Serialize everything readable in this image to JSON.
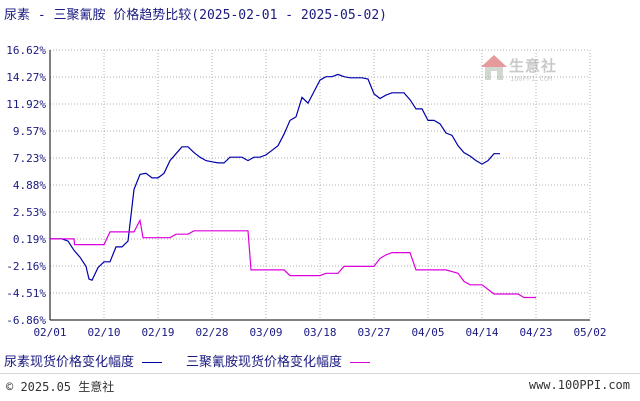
{
  "header": {
    "title": "尿素 - 三聚氰胺 价格趋势比较(2025-02-01 - 2025-05-02)"
  },
  "legend": {
    "items": [
      {
        "label": "尿素现货价格变化幅度",
        "color": "#0000aa"
      },
      {
        "label": "三聚氰胺现货价格变化幅度",
        "color": "#dd00dd"
      }
    ]
  },
  "watermark": {
    "name": "生意社",
    "url": "100PPI.COM"
  },
  "footer": {
    "copyright": "© 2025.05 生意社",
    "url": "www.100PPI.com"
  },
  "colors": {
    "grid": "#b0b0b0",
    "axis": "#000000",
    "tick_text": "#1a1a80",
    "background": "#ffffff"
  },
  "chart_data": {
    "type": "line",
    "title": "尿素 - 三聚氰胺 价格趋势比较(2025-02-01 - 2025-05-02)",
    "x_tick_labels": [
      "02/01",
      "02/10",
      "02/19",
      "02/28",
      "03/09",
      "03/18",
      "03/27",
      "04/05",
      "04/14",
      "04/23",
      "05/02"
    ],
    "y_tick_labels": [
      "16.62%",
      "14.27%",
      "11.92%",
      "9.57%",
      "7.23%",
      "4.88%",
      "2.53%",
      "0.19%",
      "-2.16%",
      "-4.51%",
      "-6.86%"
    ],
    "ylim": [
      -6.86,
      16.62
    ],
    "x_unit": "day index (0 = 02/01, 90 = 05/02)",
    "grid": true,
    "legend_position": "bottom",
    "series": [
      {
        "name": "尿素现货价格变化幅度",
        "color": "#0000aa",
        "points": [
          [
            0,
            0.19
          ],
          [
            2,
            0.19
          ],
          [
            3,
            0.0
          ],
          [
            4,
            -0.8
          ],
          [
            5,
            -1.4
          ],
          [
            6,
            -2.2
          ],
          [
            6.5,
            -3.3
          ],
          [
            7,
            -3.4
          ],
          [
            8,
            -2.3
          ],
          [
            9,
            -1.8
          ],
          [
            10,
            -1.8
          ],
          [
            11,
            -0.5
          ],
          [
            12,
            -0.5
          ],
          [
            13,
            0.0
          ],
          [
            14,
            4.5
          ],
          [
            15,
            5.8
          ],
          [
            16,
            5.9
          ],
          [
            17,
            5.5
          ],
          [
            18,
            5.5
          ],
          [
            19,
            5.9
          ],
          [
            20,
            7.0
          ],
          [
            21,
            7.6
          ],
          [
            22,
            8.2
          ],
          [
            23,
            8.2
          ],
          [
            24,
            7.7
          ],
          [
            25,
            7.3
          ],
          [
            26,
            7.0
          ],
          [
            27,
            6.9
          ],
          [
            28,
            6.8
          ],
          [
            29,
            6.8
          ],
          [
            30,
            7.3
          ],
          [
            31,
            7.3
          ],
          [
            32,
            7.3
          ],
          [
            33,
            7.0
          ],
          [
            34,
            7.3
          ],
          [
            35,
            7.3
          ],
          [
            36,
            7.5
          ],
          [
            37,
            7.9
          ],
          [
            38,
            8.3
          ],
          [
            39,
            9.3
          ],
          [
            40,
            10.5
          ],
          [
            41,
            10.8
          ],
          [
            42,
            12.5
          ],
          [
            43,
            12.0
          ],
          [
            44,
            13.0
          ],
          [
            45,
            14.0
          ],
          [
            46,
            14.3
          ],
          [
            47,
            14.3
          ],
          [
            48,
            14.5
          ],
          [
            49,
            14.3
          ],
          [
            50,
            14.2
          ],
          [
            51,
            14.2
          ],
          [
            52,
            14.2
          ],
          [
            53,
            14.1
          ],
          [
            54,
            12.8
          ],
          [
            55,
            12.4
          ],
          [
            56,
            12.7
          ],
          [
            57,
            12.9
          ],
          [
            58,
            12.9
          ],
          [
            59,
            12.9
          ],
          [
            60,
            12.3
          ],
          [
            61,
            11.5
          ],
          [
            62,
            11.5
          ],
          [
            63,
            10.5
          ],
          [
            64,
            10.5
          ],
          [
            65,
            10.2
          ],
          [
            66,
            9.4
          ],
          [
            67,
            9.2
          ],
          [
            68,
            8.3
          ],
          [
            69,
            7.7
          ],
          [
            70,
            7.4
          ],
          [
            71,
            7.0
          ],
          [
            72,
            6.7
          ],
          [
            73,
            7.0
          ],
          [
            74,
            7.6
          ],
          [
            75,
            7.6
          ]
        ]
      },
      {
        "name": "三聚氰胺现货价格变化幅度",
        "color": "#dd00dd",
        "points": [
          [
            0,
            0.19
          ],
          [
            4,
            0.19
          ],
          [
            4.1,
            -0.3
          ],
          [
            9,
            -0.3
          ],
          [
            10,
            0.8
          ],
          [
            14,
            0.8
          ],
          [
            15,
            1.8
          ],
          [
            15.5,
            0.3
          ],
          [
            20,
            0.3
          ],
          [
            21,
            0.6
          ],
          [
            23,
            0.6
          ],
          [
            24,
            0.9
          ],
          [
            33,
            0.9
          ],
          [
            33.5,
            -2.5
          ],
          [
            39,
            -2.5
          ],
          [
            40,
            -3.0
          ],
          [
            45,
            -3.0
          ],
          [
            46,
            -2.8
          ],
          [
            48,
            -2.8
          ],
          [
            49,
            -2.2
          ],
          [
            54,
            -2.2
          ],
          [
            55,
            -1.5
          ],
          [
            56,
            -1.2
          ],
          [
            57,
            -1.0
          ],
          [
            60,
            -1.0
          ],
          [
            61,
            -2.5
          ],
          [
            66,
            -2.5
          ],
          [
            68,
            -2.8
          ],
          [
            69,
            -3.5
          ],
          [
            70,
            -3.8
          ],
          [
            72,
            -3.8
          ],
          [
            73,
            -4.2
          ],
          [
            74,
            -4.6
          ],
          [
            78,
            -4.6
          ],
          [
            79,
            -4.9
          ],
          [
            81,
            -4.9
          ]
        ]
      }
    ]
  }
}
